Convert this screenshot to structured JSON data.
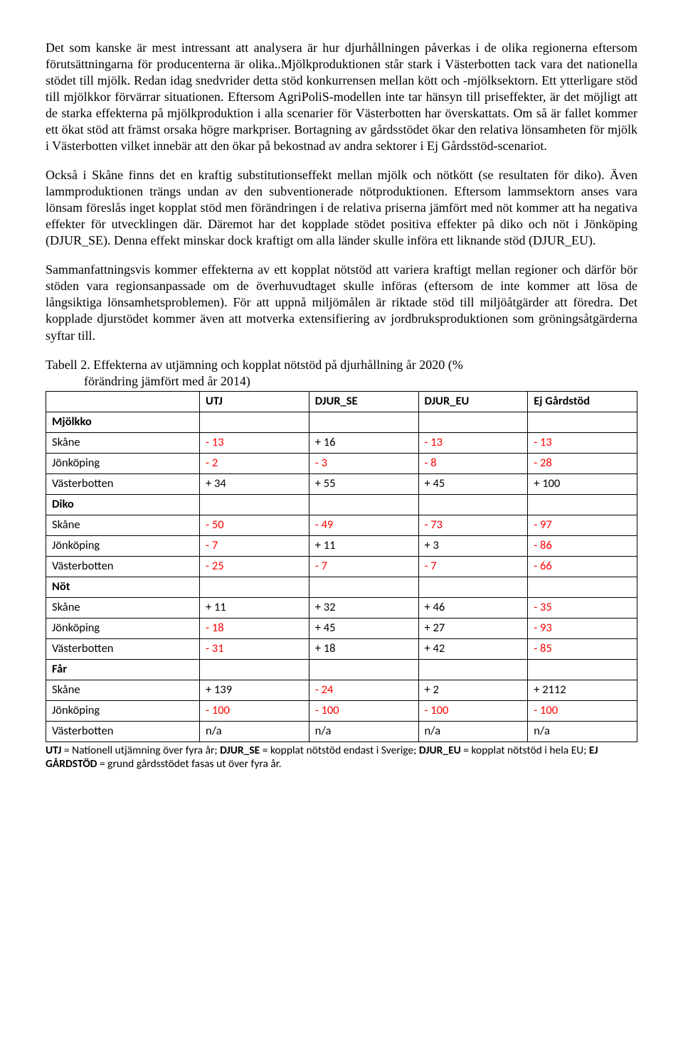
{
  "paragraphs": {
    "p1": "Det som kanske är mest intressant att analysera är hur djurhållningen påverkas i de olika regionerna eftersom förutsättningarna för producenterna är olika..Mjölkproduktionen står stark i Västerbotten tack vara det nationella stödet till mjölk. Redan idag snedvrider detta stöd konkurrensen mellan kött och -mjölksektorn. Ett ytterligare stöd till mjölkkor förvärrar situationen. Eftersom AgriPoliS-modellen inte tar hänsyn till priseffekter, är det möjligt att de starka effekterna på mjölkproduktion i alla scenarier för Västerbotten har överskattats. Om så är fallet kommer ett ökat stöd att främst orsaka högre markpriser. Bortagning av gårdsstödet ökar den relativa lönsamheten för mjölk i Västerbotten vilket innebär att den ökar på bekostnad av andra sektorer i Ej Gårdsstöd-scenariot.",
    "p2": "Också i Skåne finns det en kraftig substitutionseffekt mellan mjölk och nötkött (se resultaten för diko). Även lammproduktionen trängs undan av den subventionerade nötproduktionen. Eftersom lammsektorn anses vara lönsam föreslås inget kopplat stöd men förändringen i de relativa priserna jämfört med nöt kommer att ha negativa effekter för utvecklingen där. Däremot har det kopplade stödet positiva effekter på diko och nöt i Jönköping (DJUR_SE). Denna effekt minskar dock kraftigt om alla länder skulle införa ett liknande stöd (DJUR_EU).",
    "p3": "Sammanfattningsvis kommer effekterna av ett kopplat nötstöd att variera kraftigt mellan regioner och därför bör stöden vara regionsanpassade om de överhuvudtaget skulle införas (eftersom de inte kommer att lösa de långsiktiga lönsamhetsproblemen). För att uppnå miljömålen är riktade stöd till miljöåtgärder att föredra. Det kopplade djurstödet kommer även att motverka extensifiering av jordbruksproduktionen som gröningsåtgärderna syftar till."
  },
  "table": {
    "caption_line1": "Tabell 2. Effekterna av utjämning och kopplat nötstöd på djurhållning år 2020 (%",
    "caption_line2": "förändring jämfört med år 2014)",
    "columns": [
      "",
      "UTJ",
      "DJUR_SE",
      "DJUR_EU",
      "Ej Gårdstöd"
    ],
    "col_widths": [
      "26%",
      "18.5%",
      "18.5%",
      "18.5%",
      "18.5%"
    ],
    "sections": [
      {
        "label": "Mjölkko",
        "rows": [
          {
            "region": "Skåne",
            "cells": [
              {
                "v": "- 13",
                "c": "red"
              },
              {
                "v": "+ 16",
                "c": "blk"
              },
              {
                "v": "- 13",
                "c": "red"
              },
              {
                "v": "- 13",
                "c": "red"
              }
            ]
          },
          {
            "region": "Jönköping",
            "cells": [
              {
                "v": "- 2",
                "c": "red"
              },
              {
                "v": "- 3",
                "c": "red"
              },
              {
                "v": "- 8",
                "c": "red"
              },
              {
                "v": "- 28",
                "c": "red"
              }
            ]
          },
          {
            "region": "Västerbotten",
            "cells": [
              {
                "v": "+ 34",
                "c": "blk"
              },
              {
                "v": "+ 55",
                "c": "blk"
              },
              {
                "v": "+ 45",
                "c": "blk"
              },
              {
                "v": "+ 100",
                "c": "blk"
              }
            ]
          }
        ]
      },
      {
        "label": "Diko",
        "rows": [
          {
            "region": "Skåne",
            "cells": [
              {
                "v": "- 50",
                "c": "red"
              },
              {
                "v": "- 49",
                "c": "red"
              },
              {
                "v": "- 73",
                "c": "red"
              },
              {
                "v": "- 97",
                "c": "red"
              }
            ]
          },
          {
            "region": "Jönköping",
            "cells": [
              {
                "v": "- 7",
                "c": "red"
              },
              {
                "v": "+ 11",
                "c": "blk"
              },
              {
                "v": "+ 3",
                "c": "blk"
              },
              {
                "v": "- 86",
                "c": "red"
              }
            ]
          },
          {
            "region": "Västerbotten",
            "cells": [
              {
                "v": "- 25",
                "c": "red"
              },
              {
                "v": "- 7",
                "c": "red"
              },
              {
                "v": "- 7",
                "c": "red"
              },
              {
                "v": "- 66",
                "c": "red"
              }
            ]
          }
        ]
      },
      {
        "label": "Nöt",
        "rows": [
          {
            "region": "Skåne",
            "cells": [
              {
                "v": "+ 11",
                "c": "blk"
              },
              {
                "v": "+ 32",
                "c": "blk"
              },
              {
                "v": "+ 46",
                "c": "blk"
              },
              {
                "v": "- 35",
                "c": "red"
              }
            ]
          },
          {
            "region": "Jönköping",
            "cells": [
              {
                "v": "- 18",
                "c": "red"
              },
              {
                "v": "+ 45",
                "c": "blk"
              },
              {
                "v": "+ 27",
                "c": "blk"
              },
              {
                "v": "- 93",
                "c": "red"
              }
            ]
          },
          {
            "region": "Västerbotten",
            "cells": [
              {
                "v": "- 31",
                "c": "red"
              },
              {
                "v": "+ 18",
                "c": "blk"
              },
              {
                "v": "+ 42",
                "c": "blk"
              },
              {
                "v": "- 85",
                "c": "red"
              }
            ]
          }
        ]
      },
      {
        "label": "Får",
        "rows": [
          {
            "region": "Skåne",
            "cells": [
              {
                "v": "+ 139",
                "c": "blk"
              },
              {
                "v": "- 24",
                "c": "red"
              },
              {
                "v": "+ 2",
                "c": "blk"
              },
              {
                "v": "+ 2112",
                "c": "blk"
              }
            ]
          },
          {
            "region": "Jönköping",
            "cells": [
              {
                "v": "- 100",
                "c": "red"
              },
              {
                "v": "- 100",
                "c": "red"
              },
              {
                "v": "- 100",
                "c": "red"
              },
              {
                "v": "- 100",
                "c": "red"
              }
            ]
          },
          {
            "region": "Västerbotten",
            "cells": [
              {
                "v": "n/a",
                "c": "blk"
              },
              {
                "v": "n/a",
                "c": "blk"
              },
              {
                "v": "n/a",
                "c": "blk"
              },
              {
                "v": "n/a",
                "c": "blk"
              }
            ]
          }
        ]
      }
    ],
    "footnote_parts": [
      {
        "b": true,
        "t": "UTJ"
      },
      {
        "b": false,
        "t": " = Nationell utjämning över fyra år; "
      },
      {
        "b": true,
        "t": "DJUR_SE"
      },
      {
        "b": false,
        "t": " = kopplat nötstöd endast i Sverige; "
      },
      {
        "b": true,
        "t": "DJUR_EU"
      },
      {
        "b": false,
        "t": " = kopplat nötstöd i hela EU; "
      },
      {
        "b": true,
        "t": "EJ GÅRDSTÖD"
      },
      {
        "b": false,
        "t": " = grund gårdsstödet fasas ut över fyra år."
      }
    ]
  }
}
